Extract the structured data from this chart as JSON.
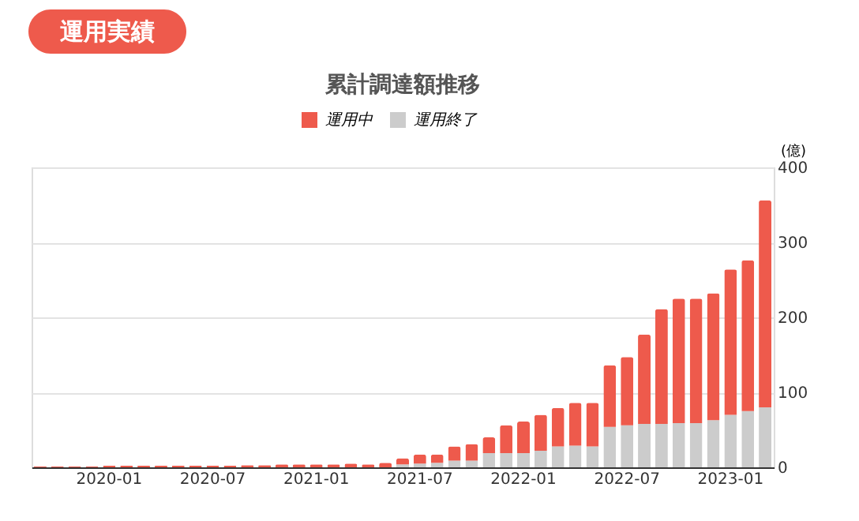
{
  "chart_data": {
    "type": "bar",
    "title": "累計調達額推移",
    "ylabel": "(億)",
    "annotations": [
      "運用実績"
    ],
    "categories": [
      null,
      null,
      null,
      null,
      "2020-01",
      null,
      null,
      null,
      null,
      null,
      "2020-07",
      null,
      null,
      null,
      null,
      null,
      "2021-01",
      null,
      null,
      null,
      null,
      null,
      "2021-07",
      null,
      null,
      null,
      null,
      null,
      "2022-01",
      null,
      null,
      null,
      null,
      null,
      "2022-07",
      null,
      null,
      null,
      null,
      null,
      "2023-01",
      null,
      null
    ],
    "stacked": true,
    "series": [
      {
        "name": "運用終了",
        "color": "#cccccc",
        "values": [
          0,
          0,
          0,
          0,
          0,
          0,
          0,
          0,
          0,
          0,
          0,
          0,
          0,
          0,
          0,
          0,
          0,
          0,
          0,
          0,
          0,
          4,
          5,
          6,
          9,
          9,
          19,
          19,
          19,
          22,
          28,
          29,
          28,
          54,
          56,
          58,
          58,
          59,
          59,
          63,
          70,
          75,
          80
        ]
      },
      {
        "name": "運用中",
        "color": "#ee5a4c",
        "values": [
          1,
          1,
          1,
          1,
          2,
          2,
          2,
          2,
          2,
          2,
          2,
          2,
          3,
          3,
          4,
          4,
          4,
          4,
          5,
          4,
          6,
          8,
          12,
          11,
          19,
          22,
          21,
          37,
          42,
          48,
          51,
          57,
          58,
          82,
          91,
          119,
          153,
          166,
          166,
          169,
          194,
          201,
          276
        ]
      }
    ],
    "ylim": [
      0,
      400
    ],
    "yticks": [
      0,
      100,
      200,
      300,
      400
    ],
    "grid": "y",
    "legend": "top"
  }
}
